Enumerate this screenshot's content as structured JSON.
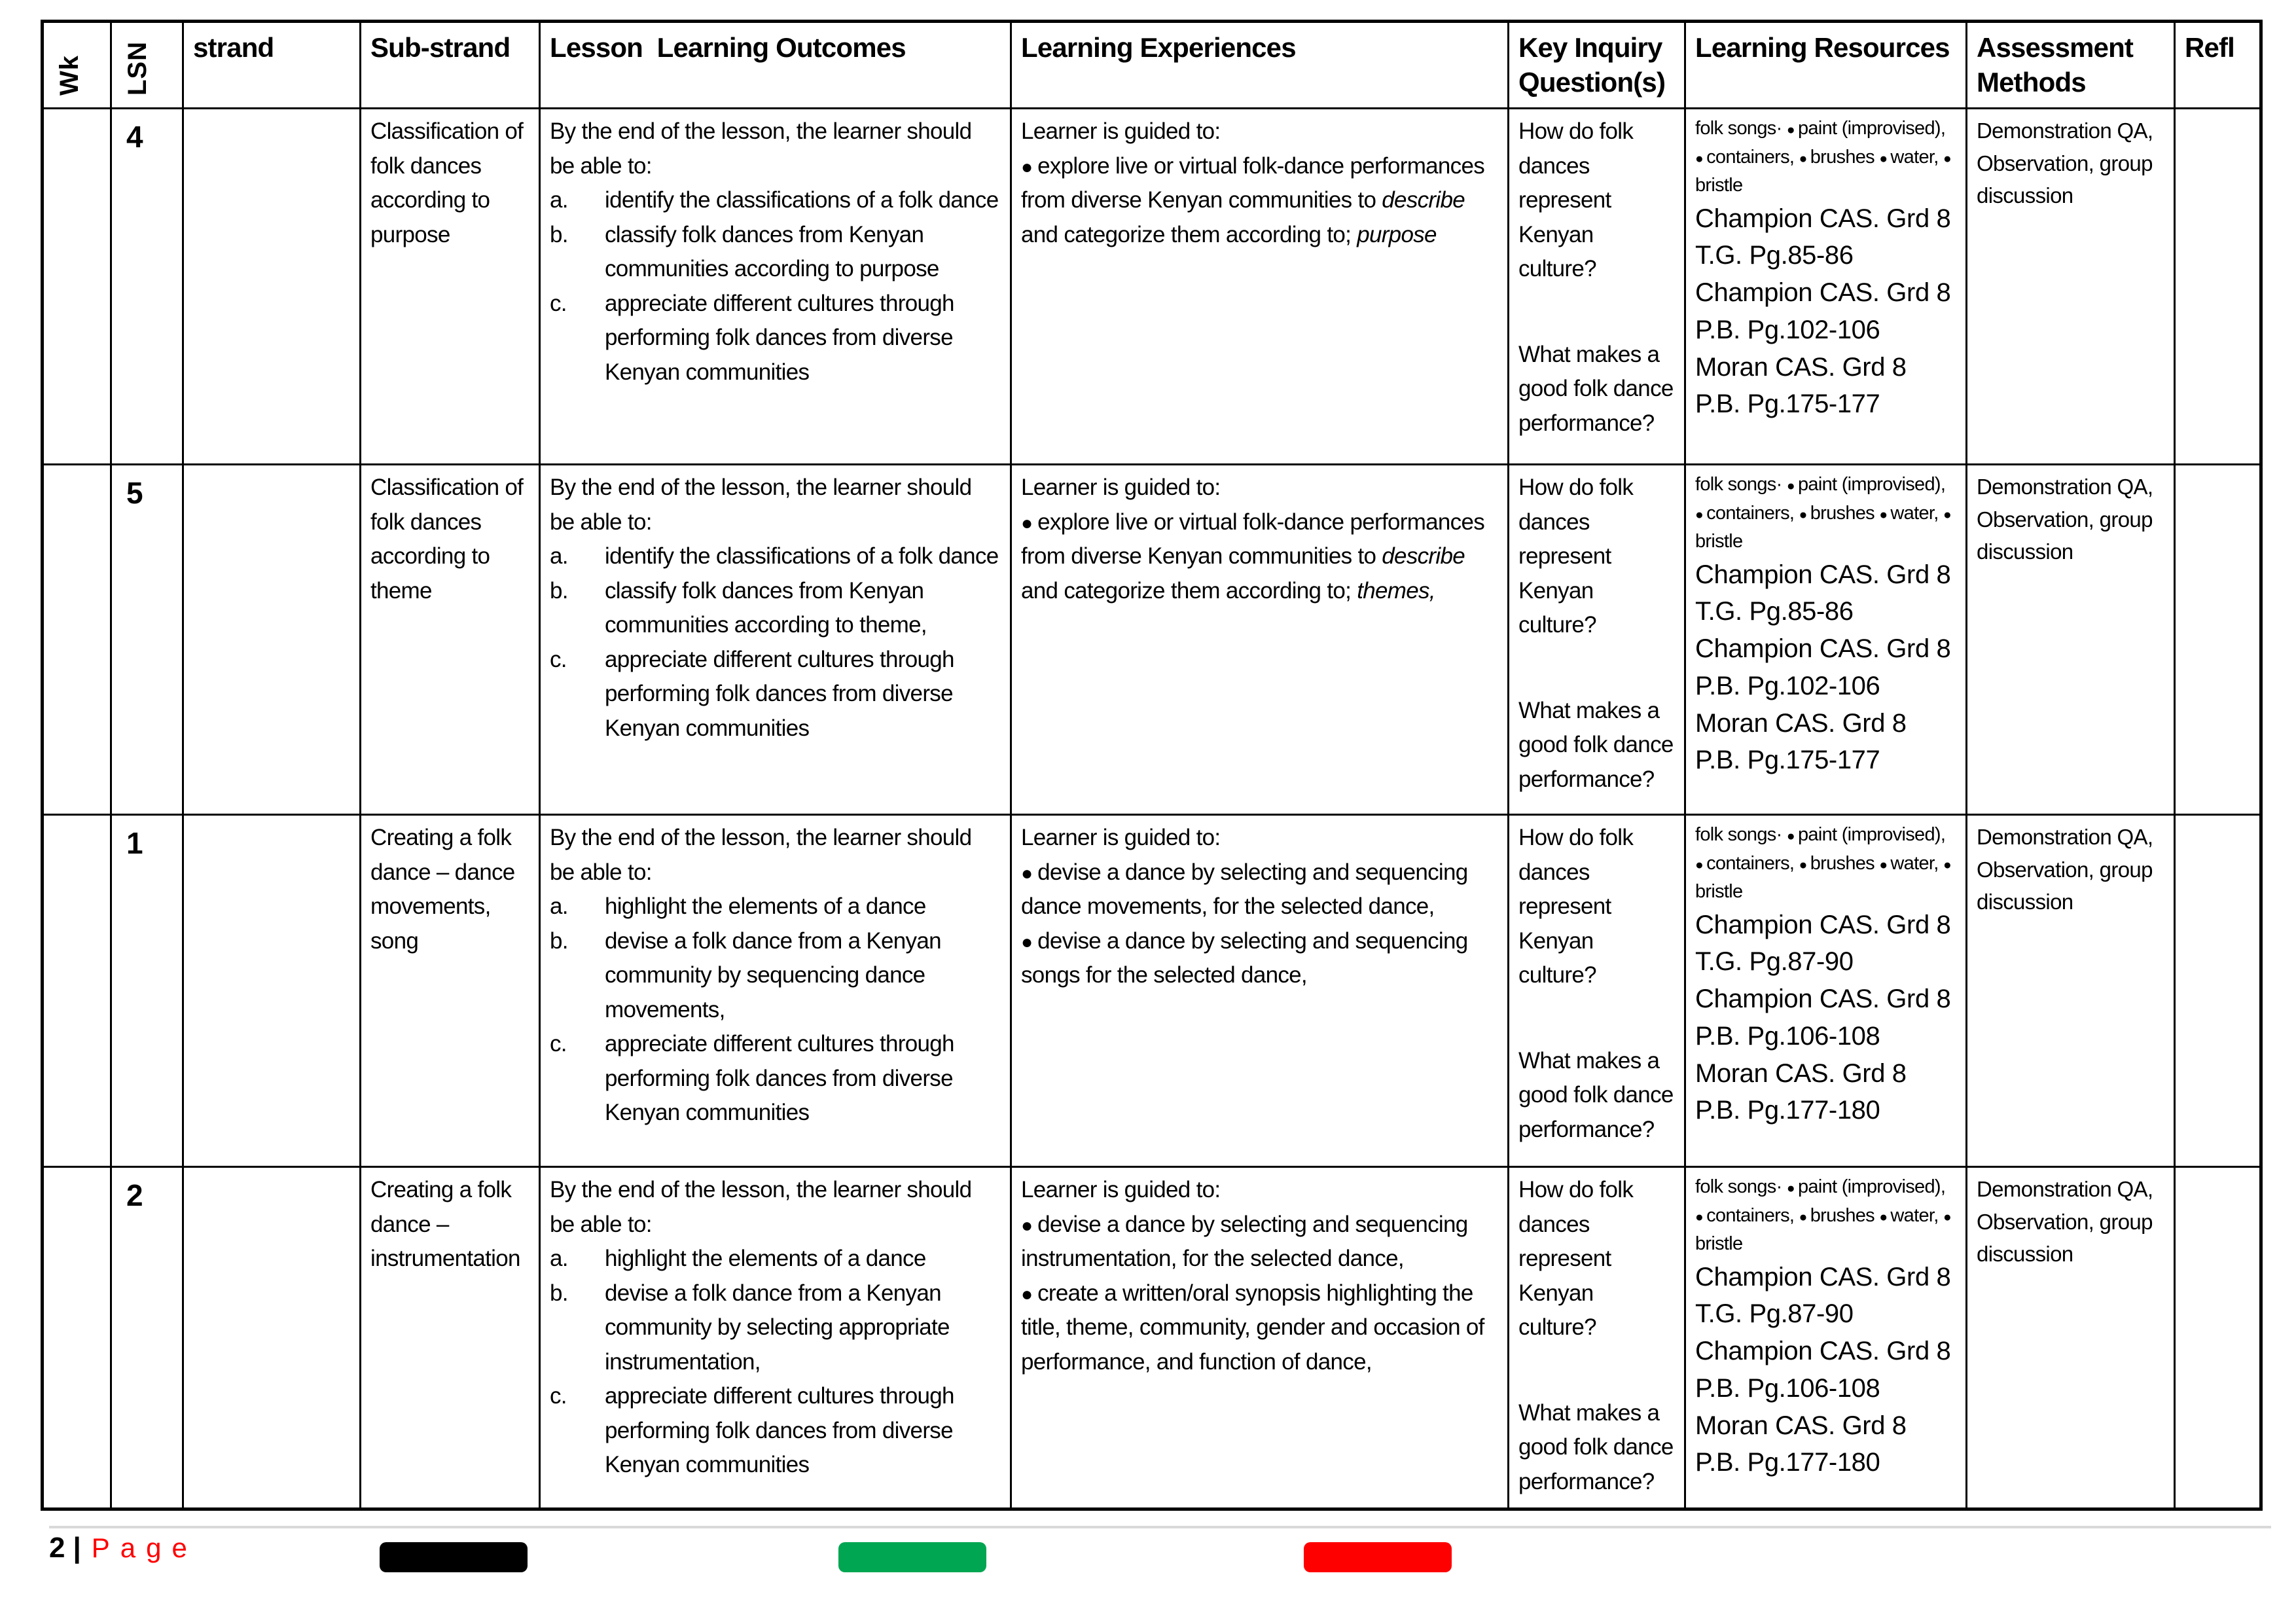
{
  "table": {
    "headers": {
      "wk": "Wk",
      "lsn": "LSN",
      "strand": "strand",
      "sub_strand": "Sub-strand",
      "outcomes": "Lesson  Learning Outcomes",
      "experiences": "Learning Experiences",
      "kiq": "Key Inquiry Question(s)",
      "resources": "Learning Resources",
      "assessment": "Assessment Methods",
      "refl": "Refl"
    },
    "rows": [
      {
        "wk": "",
        "lsn": "4",
        "strand": "",
        "sub_strand": "Classification of folk dances according to purpose",
        "outcomes_intro": "By the end of the lesson, the learner should be able to:",
        "outcomes": [
          {
            "label": "a.",
            "text": "identify the classifications of a folk dance"
          },
          {
            "label": "b.",
            "text": "classify folk dances from Kenyan communities according to purpose"
          },
          {
            "label": "c.",
            "text": "appreciate different cultures through performing folk dances from diverse Kenyan communities"
          }
        ],
        "experiences_intro": "Learner is guided to:",
        "experiences": [
          [
            {
              "t": "explore live or virtual folk-dance performances from diverse Kenyan communities to "
            },
            {
              "t": "describe",
              "i": true
            },
            {
              "t": " and categorize them according to; "
            },
            {
              "t": "purpose",
              "i": true
            }
          ]
        ],
        "kiq": [
          "How do folk dances represent Kenyan culture?",
          "What makes a good folk dance performance?"
        ],
        "resources_lead": "folk songs·",
        "resources_items": [
          "paint (improvised),",
          "containers,",
          "brushes",
          "water,",
          "bristle"
        ],
        "resources_books": [
          "Champion CAS. Grd 8 T.G. Pg.85-86",
          "Champion CAS. Grd 8 P.B. Pg.102-106",
          "Moran CAS. Grd 8 P.B. Pg.175-177"
        ],
        "assessment": "Demonstration QA, Observation, group discussion",
        "refl": ""
      },
      {
        "wk": "",
        "lsn": "5",
        "strand": "",
        "sub_strand": "Classification of folk dances according to theme",
        "outcomes_intro": "By the end of the lesson, the learner should be able to:",
        "outcomes": [
          {
            "label": "a.",
            "text": "identify the classifications of a folk dance"
          },
          {
            "label": "b.",
            "text": "classify folk dances from Kenyan communities according to theme,"
          },
          {
            "label": "c.",
            "text": "appreciate different cultures through performing folk dances from diverse Kenyan communities"
          }
        ],
        "experiences_intro": "Learner is guided to:",
        "experiences": [
          [
            {
              "t": "explore live or virtual folk-dance performances from diverse Kenyan communities to "
            },
            {
              "t": "describe",
              "i": true
            },
            {
              "t": " and categorize them according to; "
            },
            {
              "t": "themes,",
              "i": true
            }
          ]
        ],
        "kiq": [
          "How do folk dances represent Kenyan culture?",
          "What makes a good folk dance performance?"
        ],
        "resources_lead": "folk songs·",
        "resources_items": [
          "paint (improvised),",
          "containers,",
          "brushes",
          "water,",
          "bristle"
        ],
        "resources_books": [
          "Champion CAS. Grd 8 T.G. Pg.85-86",
          "Champion CAS. Grd 8 P.B. Pg.102-106",
          "Moran CAS. Grd 8 P.B. Pg.175-177"
        ],
        "assessment": "Demonstration QA, Observation, group discussion",
        "refl": ""
      },
      {
        "wk": "",
        "lsn": "1",
        "strand": "",
        "sub_strand": "Creating a folk dance – dance movements, song",
        "outcomes_intro": "By the end of the lesson, the learner should be able to:",
        "outcomes": [
          {
            "label": "a.",
            "text": "highlight the elements of a dance"
          },
          {
            "label": "b.",
            "text": "devise a folk dance from a Kenyan community by sequencing dance movements,"
          },
          {
            "label": "c.",
            "text": "appreciate different cultures through performing folk dances from diverse Kenyan communities"
          }
        ],
        "experiences_intro": "Learner is guided to:",
        "experiences": [
          [
            {
              "t": "devise a dance by selecting and sequencing dance movements, for the selected dance,"
            }
          ],
          [
            {
              "t": "devise a dance by selecting and sequencing songs for the selected dance,"
            }
          ]
        ],
        "kiq": [
          "How do folk dances represent Kenyan culture?",
          "What makes a good folk dance performance?"
        ],
        "resources_lead": "folk songs·",
        "resources_items": [
          "paint (improvised),",
          "containers,",
          "brushes",
          "water,",
          "bristle"
        ],
        "resources_books": [
          "Champion CAS. Grd 8 T.G. Pg.87-90",
          "Champion CAS. Grd 8 P.B. Pg.106-108",
          "Moran CAS. Grd 8 P.B. Pg.177-180"
        ],
        "assessment": "Demonstration QA, Observation, group discussion",
        "refl": ""
      },
      {
        "wk": "",
        "lsn": "2",
        "strand": "",
        "sub_strand": "Creating a folk dance – instrumentation",
        "outcomes_intro": "By the end of the lesson, the learner should be able to:",
        "outcomes": [
          {
            "label": "a.",
            "text": "highlight the elements of a dance"
          },
          {
            "label": "b.",
            "text": "devise a folk dance from a Kenyan community by selecting appropriate instrumentation,"
          },
          {
            "label": "c.",
            "text": "appreciate different cultures through performing folk dances from diverse Kenyan communities"
          }
        ],
        "experiences_intro": "Learner is guided to:",
        "experiences": [
          [
            {
              "t": "devise a dance by selecting and sequencing instrumentation, for the selected dance,"
            }
          ],
          [
            {
              "t": "create a written/oral synopsis highlighting the title, theme, community, gender and occasion of performance, and function of dance,"
            }
          ]
        ],
        "kiq": [
          "How do folk dances represent Kenyan culture?",
          "What makes a good folk dance performance?"
        ],
        "resources_lead": "folk songs·",
        "resources_items": [
          "paint (improvised),",
          "containers,",
          "brushes",
          "water,",
          "bristle"
        ],
        "resources_books": [
          "Champion CAS. Grd 8 T.G. Pg.87-90",
          "Champion CAS. Grd 8 P.B. Pg.106-108",
          "Moran CAS. Grd 8 P.B. Pg.177-180"
        ],
        "assessment": "Demonstration QA, Observation, group discussion",
        "refl": ""
      }
    ]
  },
  "footer": {
    "page_number": "2",
    "separator": "|",
    "page_label": "Page",
    "bars": [
      {
        "name": "black-highlight-bar",
        "color": "#000000"
      },
      {
        "name": "green-highlight-bar",
        "color": "#00A651"
      },
      {
        "name": "red-highlight-bar",
        "color": "#FF0000"
      }
    ]
  }
}
